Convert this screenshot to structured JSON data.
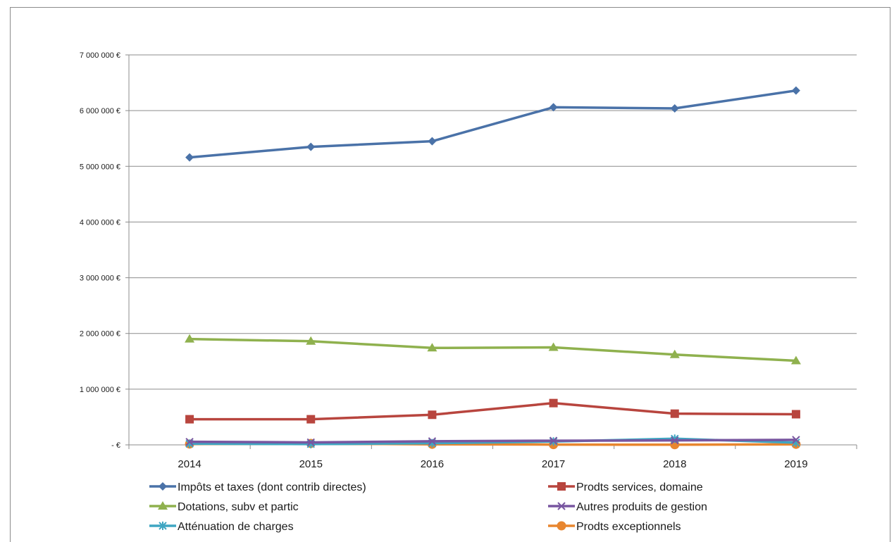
{
  "chart_data": {
    "type": "line",
    "title": "",
    "xlabel": "",
    "ylabel": "",
    "categories": [
      "2014",
      "2015",
      "2016",
      "2017",
      "2018",
      "2019"
    ],
    "ylim": [
      0,
      7000000
    ],
    "yticks": [
      0,
      1000000,
      2000000,
      3000000,
      4000000,
      5000000,
      6000000,
      7000000
    ],
    "ytick_labels": [
      "- €",
      "1 000 000 €",
      "2 000 000 €",
      "3 000 000 €",
      "4 000 000 €",
      "5 000 000 €",
      "6 000 000 €",
      "7 000 000 €"
    ],
    "grid": true,
    "legend": "bottom",
    "series": [
      {
        "name": "Impôts et taxes (dont contrib directes)",
        "color": "#4a72a8",
        "marker": "diamond",
        "values": [
          5160000,
          5350000,
          5450000,
          6060000,
          6040000,
          6360000
        ]
      },
      {
        "name": "Prodts services, domaine",
        "color": "#b8453e",
        "marker": "square",
        "values": [
          460000,
          460000,
          540000,
          750000,
          560000,
          550000
        ]
      },
      {
        "name": "Dotations, subv et partic",
        "color": "#8fb14e",
        "marker": "triangle",
        "values": [
          1900000,
          1860000,
          1740000,
          1750000,
          1620000,
          1510000
        ]
      },
      {
        "name": "Autres produits de gestion",
        "color": "#7856a0",
        "marker": "x",
        "values": [
          55000,
          45000,
          65000,
          75000,
          80000,
          90000
        ]
      },
      {
        "name": "Atténuation de charges",
        "color": "#3fa6c2",
        "marker": "asterisk",
        "values": [
          20000,
          15000,
          30000,
          60000,
          110000,
          40000
        ]
      },
      {
        "name": "Prodts exceptionnels",
        "color": "#e8862f",
        "marker": "circle",
        "values": [
          15000,
          25000,
          10000,
          5000,
          3000,
          10000
        ]
      }
    ]
  }
}
